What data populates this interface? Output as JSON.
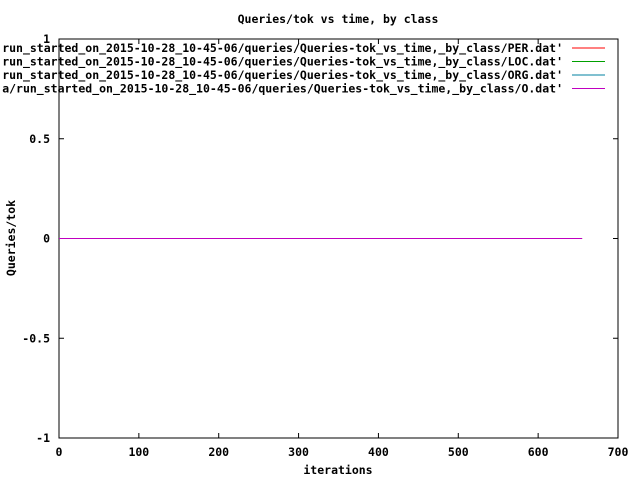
{
  "chart_data": {
    "type": "line",
    "title": "Queries/tok vs time, by class",
    "xlabel": "iterations",
    "ylabel": "Queries/tok",
    "xlim": [
      0,
      700
    ],
    "ylim": [
      -1,
      1
    ],
    "x_ticks": [
      {
        "value": 0,
        "label": "0"
      },
      {
        "value": 100,
        "label": "100"
      },
      {
        "value": 200,
        "label": "200"
      },
      {
        "value": 300,
        "label": "300"
      },
      {
        "value": 400,
        "label": "400"
      },
      {
        "value": 500,
        "label": "500"
      },
      {
        "value": 600,
        "label": "600"
      },
      {
        "value": 700,
        "label": "700"
      }
    ],
    "y_ticks": [
      {
        "value": -1,
        "label": "-1"
      },
      {
        "value": -0.5,
        "label": "-0.5"
      },
      {
        "value": 0,
        "label": "0"
      },
      {
        "value": 0.5,
        "label": "0.5"
      },
      {
        "value": 1,
        "label": "1"
      }
    ],
    "grid": false,
    "legend_position": "top-right",
    "series": [
      {
        "name": "'run_started_on_2015-10-28_10-45-06/queries/Queries-tok_vs_time,_by_class/PER.dat'",
        "color": "#ff0000",
        "x": [
          0,
          655
        ],
        "y": [
          0,
          0
        ]
      },
      {
        "name": "'run_started_on_2015-10-28_10-45-06/queries/Queries-tok_vs_time,_by_class/LOC.dat'",
        "color": "#00a000",
        "x": [
          0,
          655
        ],
        "y": [
          0,
          0
        ]
      },
      {
        "name": "'run_started_on_2015-10-28_10-45-06/queries/Queries-tok_vs_time,_by_class/ORG.dat'",
        "color": "#0080a0",
        "x": [
          0,
          655
        ],
        "y": [
          0,
          0
        ]
      },
      {
        "name": "'a/run_started_on_2015-10-28_10-45-06/queries/Queries-tok_vs_time,_by_class/O.dat'",
        "color": "#c000c0",
        "x": [
          0,
          655
        ],
        "y": [
          0,
          0
        ]
      }
    ]
  }
}
